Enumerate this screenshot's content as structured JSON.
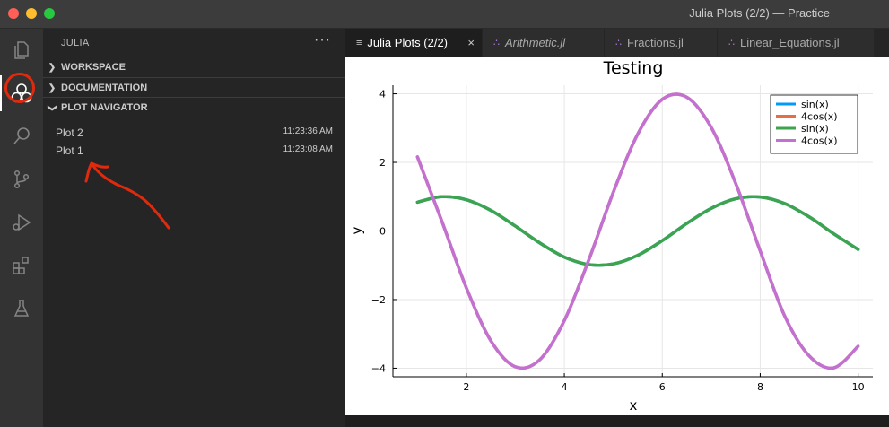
{
  "window": {
    "title": "Julia Plots (2/2) — Practice"
  },
  "activity_bar": {
    "items": [
      "explorer-icon",
      "julia-icon",
      "search-icon",
      "source-control-icon",
      "run-debug-icon",
      "extensions-icon",
      "testing-icon"
    ]
  },
  "sidebar": {
    "title": "JULIA",
    "more": "···",
    "sections": [
      {
        "label": "WORKSPACE",
        "expanded": false
      },
      {
        "label": "DOCUMENTATION",
        "expanded": false
      },
      {
        "label": "PLOT NAVIGATOR",
        "expanded": true
      }
    ],
    "plots": [
      {
        "name": "Plot 2",
        "time": "11:23:36 AM"
      },
      {
        "name": "Plot 1",
        "time": "11:23:08 AM"
      }
    ]
  },
  "tabs": [
    {
      "label": "Julia Plots (2/2)",
      "active": true,
      "close": "×"
    },
    {
      "label": "Arithmetic.jl",
      "active": false
    },
    {
      "label": "Fractions.jl",
      "active": false
    },
    {
      "label": "Linear_Equations.jl",
      "active": false
    }
  ],
  "colors": {
    "annotation": "#e02a0e",
    "julia_purple": "#a97bd6",
    "series_blue": "#009af9",
    "series_orange": "#e26f46",
    "series_green": "#3da44d",
    "series_purple": "#c271d2"
  },
  "chart_data": {
    "type": "line",
    "title": "Testing",
    "xlabel": "x",
    "ylabel": "y",
    "xlim": [
      0.5,
      10.3
    ],
    "ylim": [
      -4.25,
      4.25
    ],
    "xticks": [
      2,
      4,
      6,
      8,
      10
    ],
    "yticks": [
      -4,
      -2,
      0,
      2,
      4
    ],
    "ytick_labels": [
      "−4",
      "−2",
      "0",
      "2",
      "4"
    ],
    "grid": true,
    "legend_position": "top-right",
    "x": [
      1.0,
      1.5,
      2.0,
      2.5,
      3.0,
      3.5,
      4.0,
      4.5,
      5.0,
      5.5,
      6.0,
      6.5,
      7.0,
      7.5,
      8.0,
      8.5,
      9.0,
      9.5,
      10.0
    ],
    "series": [
      {
        "name": "sin(x)",
        "color": "#009af9",
        "values": [
          0.84,
          1.0,
          0.91,
          0.6,
          0.14,
          -0.35,
          -0.76,
          -0.98,
          -0.96,
          -0.71,
          -0.28,
          0.22,
          0.66,
          0.94,
          0.99,
          0.8,
          0.41,
          -0.08,
          -0.54
        ]
      },
      {
        "name": "4cos(x)",
        "color": "#e26f46",
        "values": [
          2.16,
          0.28,
          -1.66,
          -3.2,
          -3.96,
          -3.75,
          -2.61,
          -0.84,
          1.13,
          2.83,
          3.84,
          3.9,
          3.02,
          1.39,
          -0.58,
          -2.48,
          -3.64,
          -3.99,
          -3.36
        ]
      },
      {
        "name": "sin(x)",
        "color": "#3da44d",
        "values": [
          0.84,
          1.0,
          0.91,
          0.6,
          0.14,
          -0.35,
          -0.76,
          -0.98,
          -0.96,
          -0.71,
          -0.28,
          0.22,
          0.66,
          0.94,
          0.99,
          0.8,
          0.41,
          -0.08,
          -0.54
        ]
      },
      {
        "name": "4cos(x)",
        "color": "#c271d2",
        "values": [
          2.16,
          0.28,
          -1.66,
          -3.2,
          -3.96,
          -3.75,
          -2.61,
          -0.84,
          1.13,
          2.83,
          3.84,
          3.9,
          3.02,
          1.39,
          -0.58,
          -2.48,
          -3.64,
          -3.99,
          -3.36
        ]
      }
    ]
  }
}
